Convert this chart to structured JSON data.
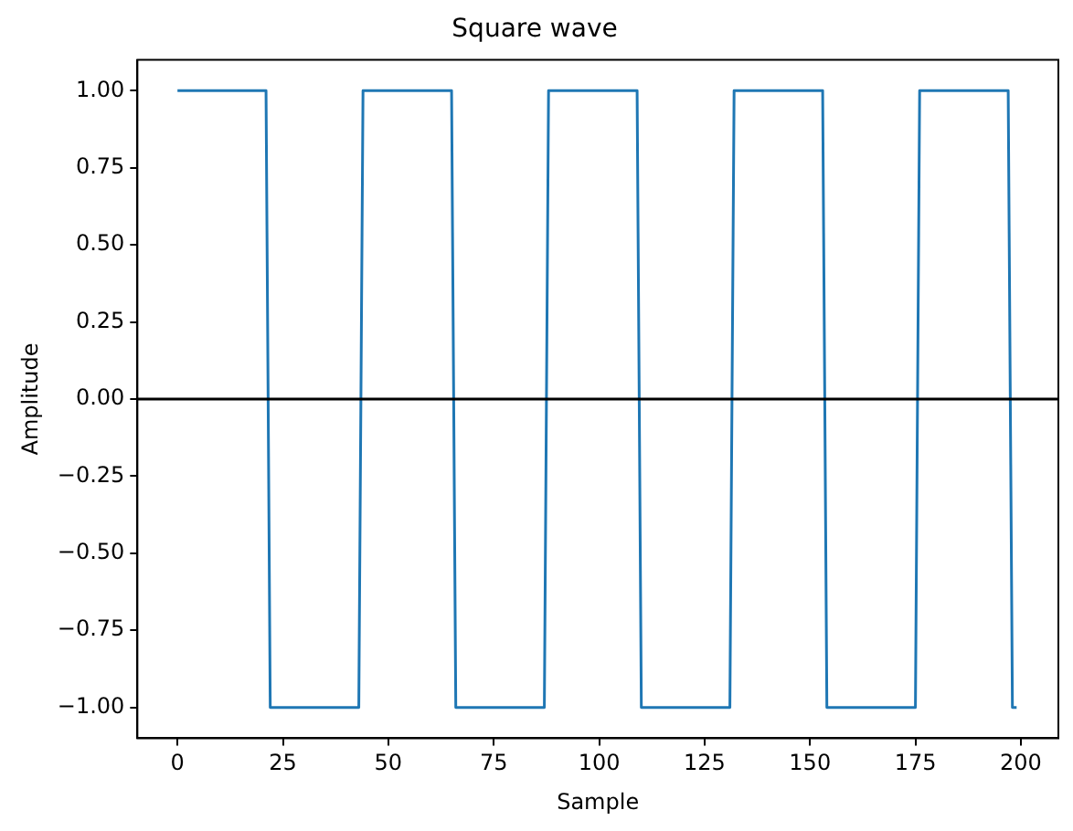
{
  "chart_data": {
    "type": "line",
    "title": "Square wave",
    "xlabel": "Sample",
    "ylabel": "Amplitude",
    "x": [
      0,
      21,
      22,
      43,
      44,
      65,
      66,
      87,
      88,
      109,
      110,
      131,
      132,
      153,
      154,
      175,
      176,
      197,
      198,
      199
    ],
    "series": [
      {
        "color": "#1f77b4",
        "values": [
          1,
          1,
          -1,
          -1,
          1,
          1,
          -1,
          -1,
          1,
          1,
          -1,
          -1,
          1,
          1,
          -1,
          -1,
          1,
          1,
          -1,
          -1
        ]
      }
    ],
    "xlim": [
      -9.5,
      208.9
    ],
    "xticks": [
      0,
      25,
      50,
      75,
      100,
      125,
      150,
      175,
      200
    ],
    "ylim": [
      -1.1,
      1.1
    ],
    "yticks": [
      {
        "value": -1,
        "label": "−1.00"
      },
      {
        "value": -0.75,
        "label": "−0.75"
      },
      {
        "value": -0.5,
        "label": "−0.50"
      },
      {
        "value": -0.25,
        "label": "−0.25"
      },
      {
        "value": 0,
        "label": "0.00"
      },
      {
        "value": 0.25,
        "label": "0.25"
      },
      {
        "value": 0.5,
        "label": "0.50"
      },
      {
        "value": 0.75,
        "label": "0.75"
      },
      {
        "value": 1,
        "label": "1.00"
      }
    ],
    "ref_lines": [
      {
        "axis": "y",
        "value": 0,
        "color": "#000000"
      }
    ],
    "grid": false,
    "legend": false,
    "marker": "none",
    "line_style": "solid"
  }
}
